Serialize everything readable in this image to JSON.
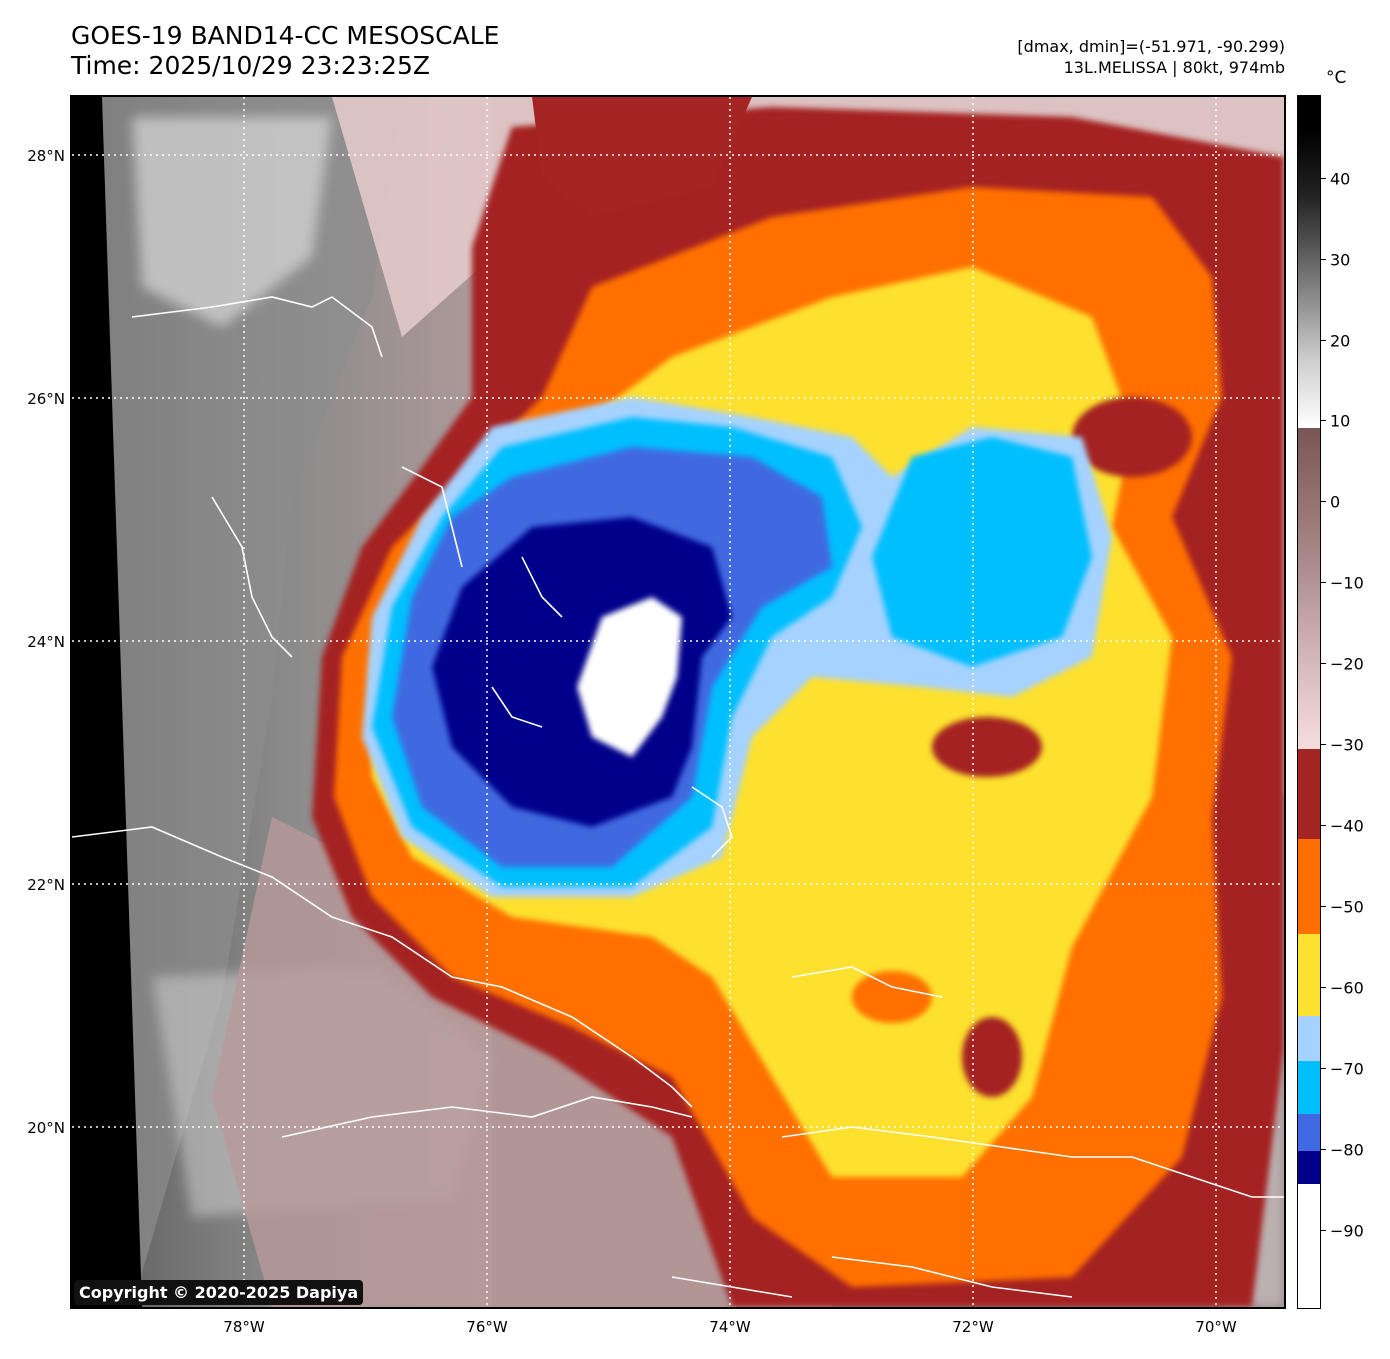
{
  "header": {
    "title_line1": "GOES-19 BAND14-CC MESOSCALE",
    "title_line2": "Time: 2025/10/29 23:23:25Z",
    "info_line1": "[dmax, dmin]=(-51.971, -90.299)",
    "info_line2": "13L.MELISSA | 80kt, 974mb"
  },
  "map": {
    "lat_labels": [
      "28°N",
      "26°N",
      "24°N",
      "22°N",
      "20°N"
    ],
    "lon_labels": [
      "78°W",
      "76°W",
      "74°W",
      "72°W",
      "70°W"
    ],
    "copyright": "Copyright © 2020-2025 Dapiya",
    "storm": "13L.MELISSA"
  },
  "colorbar": {
    "unit": "°C",
    "tick_labels": [
      "40",
      "30",
      "20",
      "10",
      "0",
      "−10",
      "−20",
      "−30",
      "−40",
      "−50",
      "−60",
      "−70",
      "−80",
      "−90"
    ],
    "colors": {
      "below_-85": "#ffffff",
      "-85_to_-80": "#00008b",
      "-80_to_-75": "#4169e1",
      "-75_to_-70": "#00bfff",
      "-70_to_-65": "#a6d2ff",
      "-65_to_-55": "#fde12d",
      "-55_to_-45": "#ff6f00",
      "-45_to_-30": "#a52424",
      "-30_to_10": "grayscale pink-brown",
      "10_to_50": "grayscale white to black"
    }
  }
}
